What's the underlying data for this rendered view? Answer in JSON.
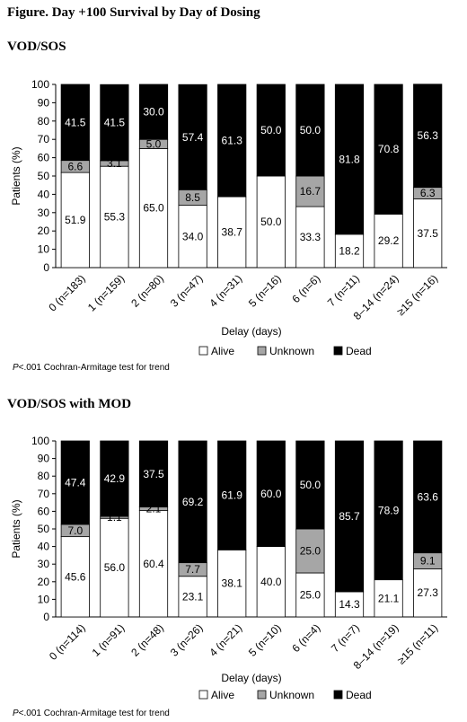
{
  "figure_title": "Figure. Day +100 Survival by Day of Dosing",
  "colors": {
    "alive": "#ffffff",
    "unknown": "#a6a6a6",
    "dead": "#000000"
  },
  "chart_data": [
    {
      "type": "bar",
      "stacked": true,
      "title": "VOD/SOS",
      "xlabel": "Delay (days)",
      "ylabel": "Patients (%)",
      "ylim": [
        0,
        100
      ],
      "yticks": [
        0,
        10,
        20,
        30,
        40,
        50,
        60,
        70,
        80,
        90,
        100
      ],
      "categories": [
        "0 (n=183)",
        "1 (n=159)",
        "2 (n=80)",
        "3 (n=47)",
        "4 (n=31)",
        "5 (n=16)",
        "6 (n=6)",
        "7 (n=11)",
        "8–14 (n=24)",
        "≥15 (n=16)"
      ],
      "series": [
        {
          "name": "Alive",
          "values": [
            51.9,
            55.3,
            65.0,
            34.0,
            38.7,
            50.0,
            33.3,
            18.2,
            29.2,
            37.5
          ]
        },
        {
          "name": "Unknown",
          "values": [
            6.6,
            3.1,
            5.0,
            8.5,
            null,
            null,
            16.7,
            null,
            null,
            6.3
          ]
        },
        {
          "name": "Dead",
          "values": [
            41.5,
            41.5,
            30.0,
            57.4,
            61.3,
            50.0,
            50.0,
            81.8,
            70.8,
            56.3
          ]
        }
      ],
      "legend_position": "bottom",
      "note_p": "P",
      "note_rest": "<.001 Cochran-Armitage test for trend"
    },
    {
      "type": "bar",
      "stacked": true,
      "title": "VOD/SOS with MOD",
      "xlabel": "Delay (days)",
      "ylabel": "Patients (%)",
      "ylim": [
        0,
        100
      ],
      "yticks": [
        0,
        10,
        20,
        30,
        40,
        50,
        60,
        70,
        80,
        90,
        100
      ],
      "categories": [
        "0 (n=114)",
        "1 (n=91)",
        "2 (n=48)",
        "3 (n=26)",
        "4 (n=21)",
        "5 (n=10)",
        "6 (n=4)",
        "7 (n=7)",
        "8–14 (n=19)",
        "≥15 (n=11)"
      ],
      "series": [
        {
          "name": "Alive",
          "values": [
            45.6,
            56.0,
            60.4,
            23.1,
            38.1,
            40.0,
            25.0,
            14.3,
            21.1,
            27.3
          ]
        },
        {
          "name": "Unknown",
          "values": [
            7.0,
            1.1,
            2.1,
            7.7,
            null,
            null,
            25.0,
            null,
            null,
            9.1
          ]
        },
        {
          "name": "Dead",
          "values": [
            47.4,
            42.9,
            37.5,
            69.2,
            61.9,
            60.0,
            50.0,
            85.7,
            78.9,
            63.6
          ]
        }
      ],
      "legend_position": "bottom",
      "note_p": "P",
      "note_rest": "<.001 Cochran-Armitage test for trend"
    }
  ]
}
